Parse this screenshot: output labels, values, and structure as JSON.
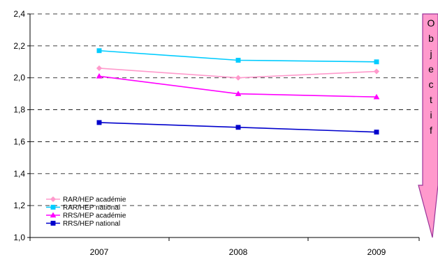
{
  "chart_data": {
    "type": "line",
    "categories": [
      "2007",
      "2008",
      "2009"
    ],
    "series": [
      {
        "name": "RAR/HEP académie",
        "values": [
          2.06,
          2.0,
          2.04
        ],
        "color": "#FF99CC",
        "marker": "diamond"
      },
      {
        "name": "RAR/HEP national",
        "values": [
          2.17,
          2.11,
          2.1
        ],
        "color": "#00CCFF",
        "marker": "square"
      },
      {
        "name": "RRS/HEP académie",
        "values": [
          2.01,
          1.9,
          1.88
        ],
        "color": "#FF00FF",
        "marker": "triangle"
      },
      {
        "name": "RRS/HEP national",
        "values": [
          1.72,
          1.69,
          1.66
        ],
        "color": "#0000CC",
        "marker": "square"
      }
    ],
    "ylim": [
      1.0,
      2.4
    ],
    "yticks": [
      "1,0",
      "1,2",
      "1,4",
      "1,6",
      "1,8",
      "2,0",
      "2,2",
      "2,4"
    ],
    "grid": true,
    "legend_position": "bottom-left",
    "annotation": {
      "text_letters": [
        "O",
        "b",
        "j",
        "e",
        "c",
        "t",
        "i",
        "f"
      ],
      "fill_color": "#FF99CC",
      "stroke_color": "#993399",
      "shape": "down-arrow"
    }
  }
}
